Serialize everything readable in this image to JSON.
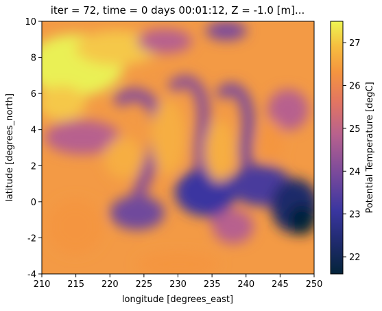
{
  "chart_data": {
    "type": "heatmap",
    "title": "iter = 72, time = 0 days 00:01:12, Z = -1.0 [m]...",
    "xlabel": "longitude [degrees_east]",
    "ylabel": "latitude [degrees_north]",
    "xlim": [
      210,
      250
    ],
    "ylim": [
      -4,
      10
    ],
    "x_ticks": [
      210,
      215,
      220,
      225,
      230,
      235,
      240,
      245,
      250
    ],
    "y_ticks": [
      -4,
      -2,
      0,
      2,
      4,
      6,
      8,
      10
    ],
    "colorbar": {
      "label": "Potential Temperature [degC]",
      "range": [
        21.6,
        27.5
      ],
      "ticks": [
        22,
        23,
        24,
        25,
        26,
        27
      ],
      "colormap": [
        "#04243a",
        "#2c2c88",
        "#6f4a9c",
        "#b66291",
        "#ee7c54",
        "#f7a93c",
        "#eef552"
      ]
    },
    "grid": false,
    "notes": "Sea-surface potential temperature field with Kelvin–Helmholtz-like eddies; warm (~27) band near 5–9N west, cold (~21.7) patch near 245–250E, -1 to 1N."
  }
}
